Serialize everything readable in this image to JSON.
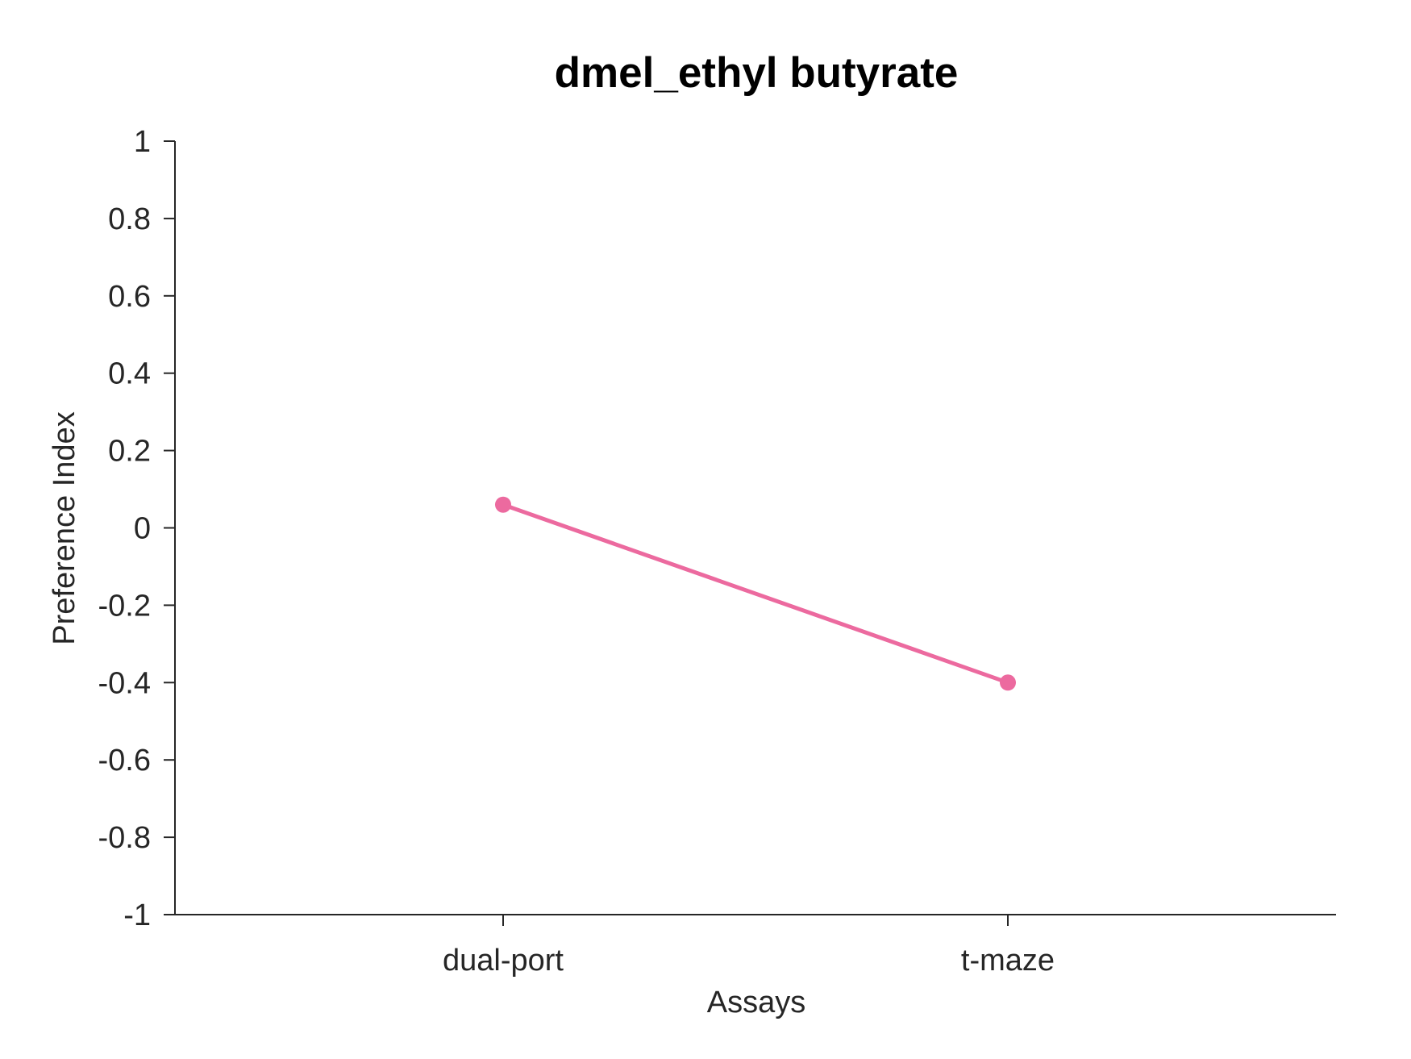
{
  "chart_data": {
    "type": "line",
    "title": "dmel_ethyl butyrate",
    "xlabel": "Assays",
    "ylabel": "Preference Index",
    "categories": [
      "dual-port",
      "t-maze"
    ],
    "ylim": [
      -1,
      1
    ],
    "yticks": [
      "1",
      "0.8",
      "0.6",
      "0.4",
      "0.2",
      "0",
      "-0.2",
      "-0.4",
      "-0.6",
      "-0.8",
      "-1"
    ],
    "series": [
      {
        "color": "#ec6a9f",
        "values": [
          0.06,
          -0.4
        ]
      }
    ],
    "grid": false,
    "legend": "none"
  }
}
